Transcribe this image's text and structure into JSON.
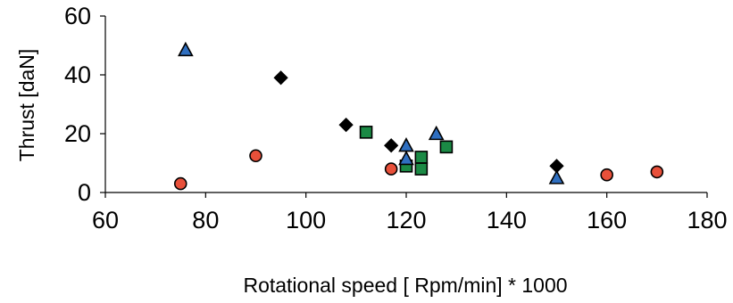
{
  "chart_data": {
    "type": "scatter",
    "title": "",
    "xlabel": "Rotational speed [ Rpm/min] * 1000",
    "ylabel": "Thrust  [daN]",
    "xlim": [
      60,
      180
    ],
    "ylim": [
      0,
      60
    ],
    "x_ticks": [
      "60",
      "80",
      "100",
      "120",
      "140",
      "160",
      "180"
    ],
    "y_ticks": [
      "0",
      "20",
      "40",
      "60"
    ],
    "grid": false,
    "legend": "none",
    "series": [
      {
        "marker": "diamond",
        "color": "#000000",
        "points": [
          [
            95,
            39
          ],
          [
            108,
            23
          ],
          [
            117,
            16
          ],
          [
            150,
            9
          ]
        ]
      },
      {
        "marker": "square",
        "color": "#1b8a45",
        "points": [
          [
            112,
            20.5
          ],
          [
            120,
            9
          ],
          [
            123,
            12
          ],
          [
            123,
            8
          ],
          [
            128,
            15.5
          ]
        ]
      },
      {
        "marker": "triangle",
        "color": "#2f6fc0",
        "points": [
          [
            76,
            48.5
          ],
          [
            120,
            16
          ],
          [
            120,
            11.5
          ],
          [
            126,
            20
          ],
          [
            150,
            5
          ]
        ]
      },
      {
        "marker": "circle",
        "color": "#e8503a",
        "points": [
          [
            75,
            3
          ],
          [
            90,
            12.5
          ],
          [
            117,
            8
          ],
          [
            160,
            6
          ],
          [
            170,
            7
          ]
        ]
      }
    ]
  }
}
